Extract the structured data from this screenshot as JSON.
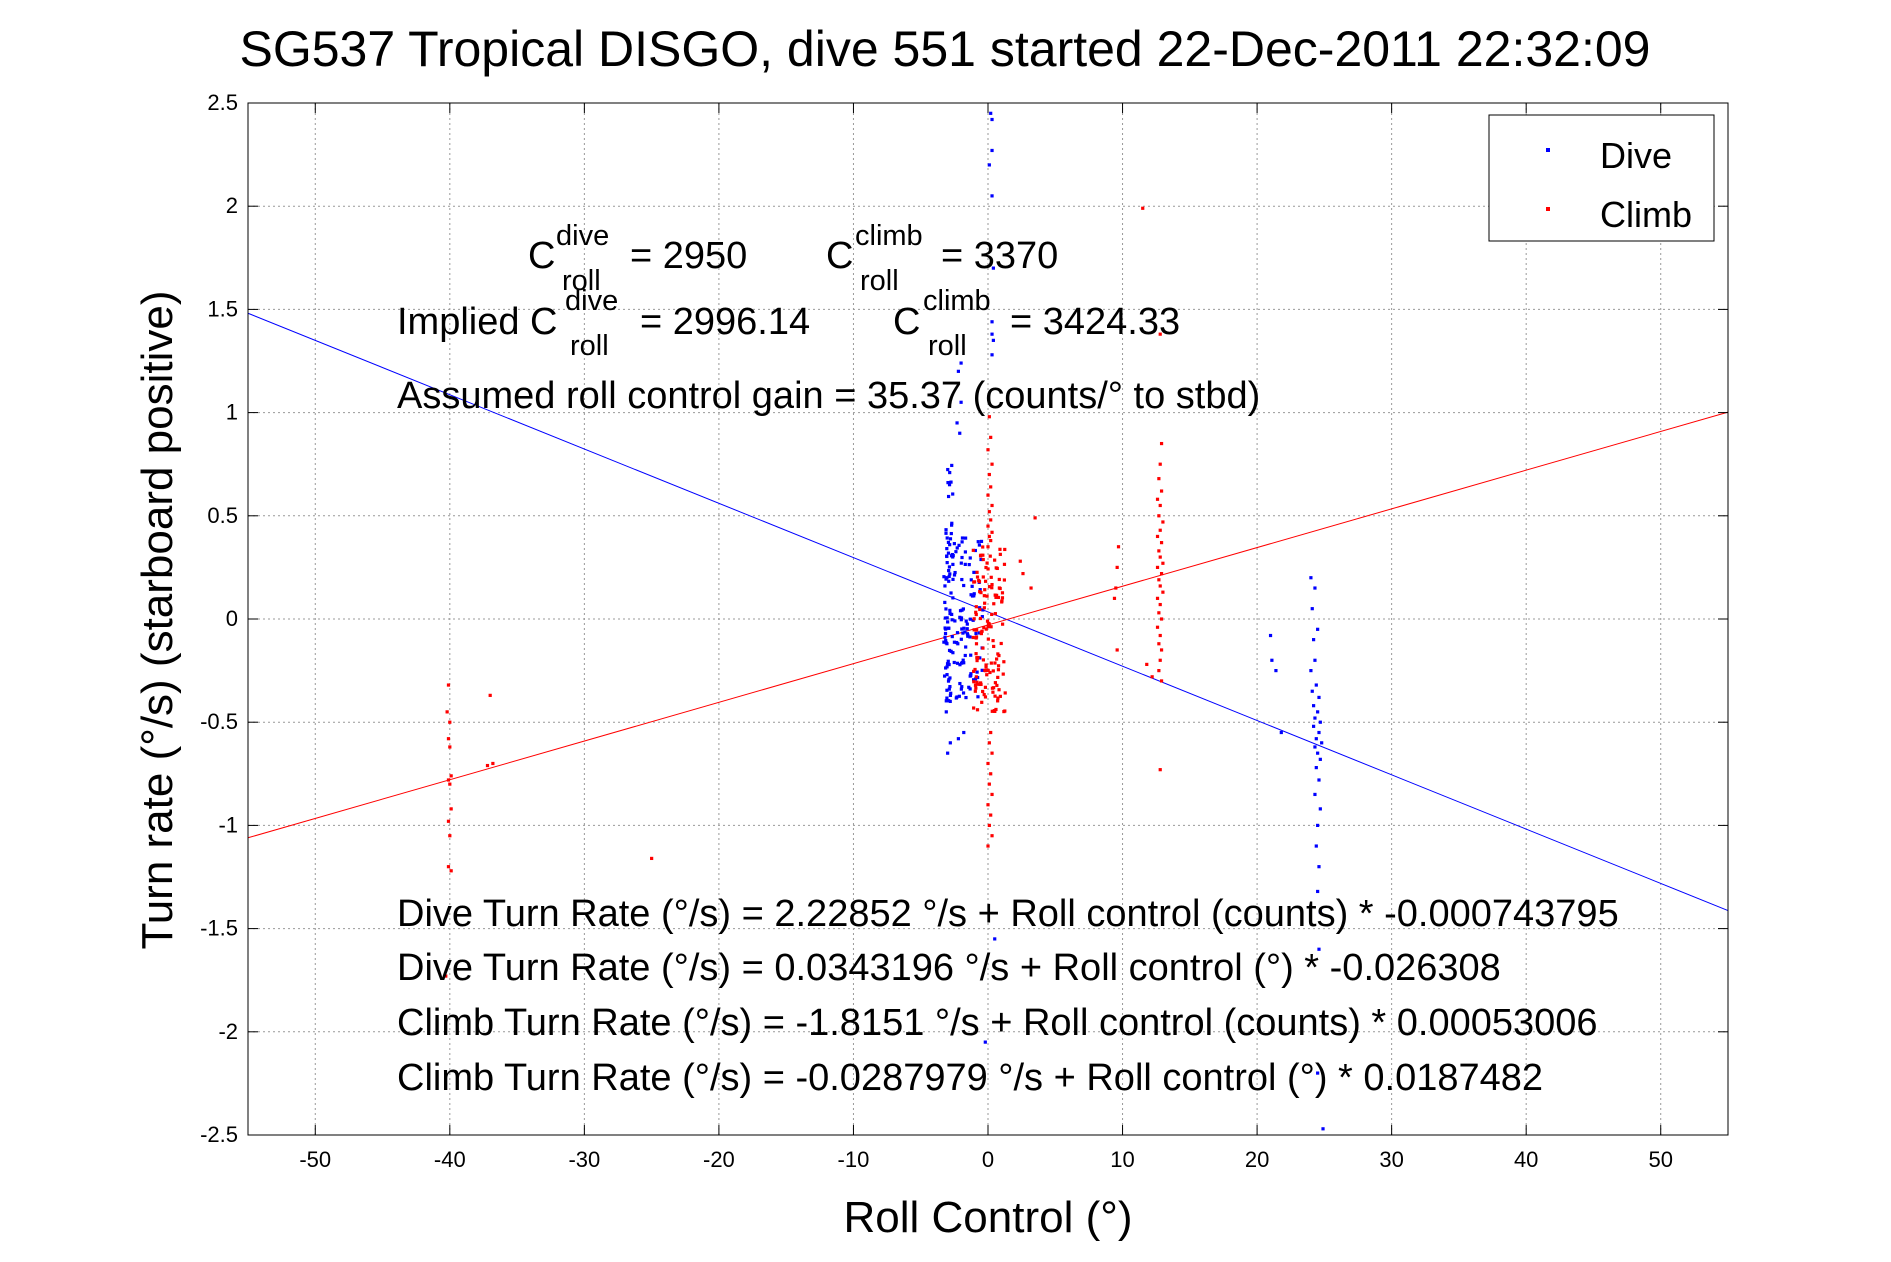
{
  "chart_data": {
    "type": "scatter",
    "title": "SG537 Tropical DISGO, dive 551 started 22-Dec-2011 22:32:09",
    "xlabel": "Roll Control (°)",
    "ylabel": "Turn rate (°/s)  (starboard positive)",
    "xlim": [
      -55,
      55
    ],
    "ylim": [
      -2.5,
      2.5
    ],
    "xticks": [
      "-50",
      "-40",
      "-30",
      "-20",
      "-10",
      "0",
      "10",
      "20",
      "30",
      "40",
      "50"
    ],
    "yticks": [
      "2.5",
      "2",
      "1.5",
      "1",
      "0.5",
      "0",
      "-0.5",
      "-1",
      "-1.5",
      "-2",
      "-2.5"
    ],
    "grid": true,
    "legend_position": "top-right",
    "colors": {
      "dive": "#0000ff",
      "climb": "#ff0000",
      "grid": "#999999"
    },
    "series": [
      {
        "name": "Dive",
        "color": "#0000ff",
        "fit": {
          "intercept": 0.0343196,
          "slope": -0.026308
        },
        "points": [
          [
            0.2,
            2.45
          ],
          [
            0.3,
            2.42
          ],
          [
            0.3,
            2.27
          ],
          [
            0.1,
            2.2
          ],
          [
            0.3,
            2.05
          ],
          [
            0.4,
            1.7
          ],
          [
            0.3,
            1.44
          ],
          [
            0.3,
            1.38
          ],
          [
            0.4,
            1.35
          ],
          [
            0.3,
            1.28
          ],
          [
            -2.0,
            1.24
          ],
          [
            -2.2,
            1.2
          ],
          [
            -2.0,
            1.05
          ],
          [
            -2.3,
            0.95
          ],
          [
            -2.1,
            0.9
          ],
          [
            0.5,
            -1.55
          ],
          [
            -0.2,
            -2.05
          ],
          [
            24.6,
            -1.6
          ],
          [
            24.5,
            -2.2
          ],
          [
            24.9,
            -2.47
          ],
          [
            21.0,
            -0.08
          ],
          [
            21.1,
            -0.2
          ],
          [
            21.4,
            -0.25
          ],
          [
            21.8,
            -0.55
          ],
          [
            24.0,
            0.2
          ],
          [
            24.3,
            0.15
          ],
          [
            24.1,
            0.05
          ],
          [
            24.5,
            -0.05
          ],
          [
            24.2,
            -0.1
          ],
          [
            24.3,
            -0.2
          ],
          [
            24.0,
            -0.25
          ],
          [
            24.4,
            -0.32
          ],
          [
            24.1,
            -0.35
          ],
          [
            24.6,
            -0.38
          ],
          [
            24.2,
            -0.42
          ],
          [
            24.5,
            -0.45
          ],
          [
            24.3,
            -0.48
          ],
          [
            24.7,
            -0.5
          ],
          [
            24.2,
            -0.52
          ],
          [
            24.6,
            -0.55
          ],
          [
            24.4,
            -0.58
          ],
          [
            24.8,
            -0.6
          ],
          [
            24.3,
            -0.62
          ],
          [
            24.5,
            -0.65
          ],
          [
            24.7,
            -0.68
          ],
          [
            24.4,
            -0.72
          ],
          [
            24.6,
            -0.78
          ],
          [
            24.3,
            -0.85
          ],
          [
            24.7,
            -0.92
          ],
          [
            24.5,
            -1.0
          ],
          [
            24.4,
            -1.1
          ],
          [
            24.6,
            -1.2
          ],
          [
            24.5,
            -1.32
          ],
          [
            24.7,
            -1.42
          ],
          [
            -3.0,
            -0.65
          ],
          [
            -2.8,
            -0.6
          ],
          [
            -2.2,
            -0.58
          ],
          [
            -1.8,
            -0.55
          ],
          [
            -3.1,
            -0.45
          ]
        ]
      },
      {
        "name": "Climb",
        "color": "#ff0000",
        "fit": {
          "intercept": -0.0287979,
          "slope": 0.0187482
        },
        "points": [
          [
            11.5,
            1.99
          ],
          [
            12.8,
            1.38
          ],
          [
            12.9,
            0.85
          ],
          [
            12.8,
            0.75
          ],
          [
            12.7,
            0.68
          ],
          [
            12.9,
            0.62
          ],
          [
            12.6,
            0.58
          ],
          [
            12.8,
            0.55
          ],
          [
            12.7,
            0.5
          ],
          [
            13.0,
            0.47
          ],
          [
            12.8,
            0.43
          ],
          [
            12.6,
            0.4
          ],
          [
            12.9,
            0.37
          ],
          [
            12.7,
            0.33
          ],
          [
            12.8,
            0.3
          ],
          [
            13.0,
            0.27
          ],
          [
            12.6,
            0.25
          ],
          [
            12.9,
            0.22
          ],
          [
            12.7,
            0.19
          ],
          [
            12.8,
            0.16
          ],
          [
            13.0,
            0.13
          ],
          [
            12.6,
            0.1
          ],
          [
            12.8,
            0.07
          ],
          [
            12.7,
            0.03
          ],
          [
            12.9,
            0.0
          ],
          [
            12.6,
            -0.04
          ],
          [
            12.8,
            -0.08
          ],
          [
            12.7,
            -0.12
          ],
          [
            12.9,
            -0.15
          ],
          [
            12.8,
            -0.2
          ],
          [
            12.7,
            -0.25
          ],
          [
            12.9,
            -0.3
          ],
          [
            12.8,
            -0.73
          ],
          [
            9.7,
            0.35
          ],
          [
            9.6,
            0.25
          ],
          [
            9.5,
            0.15
          ],
          [
            9.4,
            0.1
          ],
          [
            9.6,
            -0.15
          ],
          [
            11.8,
            -0.22
          ],
          [
            12.2,
            -0.28
          ],
          [
            3.5,
            0.49
          ],
          [
            2.4,
            0.28
          ],
          [
            2.6,
            0.22
          ],
          [
            3.2,
            0.15
          ],
          [
            -40.1,
            -0.32
          ],
          [
            -40.2,
            -0.45
          ],
          [
            -40.0,
            -0.5
          ],
          [
            -40.1,
            -0.58
          ],
          [
            -40.0,
            -0.62
          ],
          [
            -39.9,
            -0.76
          ],
          [
            -40.1,
            -0.78
          ],
          [
            -40.0,
            -0.8
          ],
          [
            -39.9,
            -0.92
          ],
          [
            -40.1,
            -0.98
          ],
          [
            -40.0,
            -1.05
          ],
          [
            -40.1,
            -1.2
          ],
          [
            -39.9,
            -1.22
          ],
          [
            -40.3,
            -1.73
          ],
          [
            -37.0,
            -0.37
          ],
          [
            -37.2,
            -0.71
          ],
          [
            -36.8,
            -0.7
          ],
          [
            -25.0,
            -1.16
          ],
          [
            0.1,
            0.98
          ],
          [
            0.2,
            0.88
          ],
          [
            0.0,
            0.82
          ],
          [
            0.3,
            0.75
          ],
          [
            0.1,
            0.7
          ],
          [
            0.2,
            0.64
          ],
          [
            0.0,
            0.6
          ],
          [
            0.3,
            0.55
          ],
          [
            0.1,
            0.52
          ],
          [
            0.2,
            0.48
          ],
          [
            0.0,
            0.45
          ],
          [
            0.3,
            0.42
          ],
          [
            0.1,
            0.4
          ],
          [
            0.2,
            0.38
          ],
          [
            0.0,
            0.35
          ],
          [
            0.2,
            -0.55
          ],
          [
            0.1,
            -0.6
          ],
          [
            0.3,
            -0.65
          ],
          [
            0.0,
            -0.7
          ],
          [
            0.2,
            -0.75
          ],
          [
            0.1,
            -0.8
          ],
          [
            0.3,
            -0.85
          ],
          [
            0.0,
            -0.9
          ],
          [
            0.2,
            -0.95
          ],
          [
            0.1,
            -1.0
          ],
          [
            0.3,
            -1.05
          ],
          [
            0.0,
            -1.1
          ]
        ],
        "clusters": [
          {
            "x_center": 0.1,
            "x_spread": 1.2,
            "y_min": -0.45,
            "y_max": 0.35,
            "n": 140
          }
        ]
      }
    ],
    "dive_clusters": [
      {
        "x_center": -1.8,
        "x_spread": 1.5,
        "y_min": -0.4,
        "y_max": 0.4,
        "n": 130
      },
      {
        "x_center": -2.9,
        "x_spread": 0.3,
        "y_min": -0.4,
        "y_max": 0.75,
        "n": 45
      }
    ],
    "annotations": {
      "c_roll_label": "C",
      "sub_roll": "roll",
      "sup_dive": "dive",
      "sup_climb": "climb",
      "c_dive_value": "= 2950",
      "c_climb_value": "= 3370",
      "implied_prefix": "Implied C",
      "implied_dive_value": "= 2996.14",
      "implied_climb_value": "= 3424.33",
      "gain": "Assumed roll control gain = 35.37 (counts/° to stbd)",
      "eq1": "Dive Turn Rate (°/s) = 2.22852 °/s + Roll control (counts) * -0.000743795",
      "eq2": "Dive Turn Rate (°/s) = 0.0343196 °/s + Roll control (°) * -0.026308",
      "eq3": "Climb Turn Rate (°/s) = -1.8151 °/s + Roll control (counts) * 0.00053006",
      "eq4": "Climb Turn Rate (°/s) = -0.0287979 °/s + Roll control (°) * 0.0187482"
    },
    "legend": [
      "Dive",
      "Climb"
    ]
  }
}
